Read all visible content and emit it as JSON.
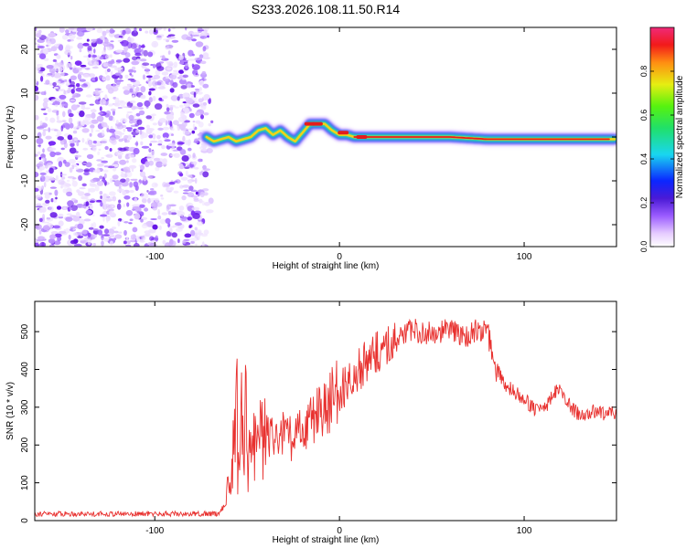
{
  "title": "S233.2026.108.11.50.R14",
  "chart_data": [
    {
      "type": "heatmap",
      "name": "spectrogram",
      "xlabel": "Height of straight line (km)",
      "ylabel": "Frequency (Hz)",
      "xlim": [
        -165,
        150
      ],
      "ylim": [
        -25,
        25
      ],
      "xticks": [
        -100,
        0,
        100
      ],
      "yticks": [
        -20,
        -10,
        0,
        10,
        20
      ],
      "noise_region_x": [
        -165,
        -72
      ],
      "signal_ridge": {
        "x": [
          -72,
          -68,
          -64,
          -60,
          -56,
          -52,
          -48,
          -44,
          -40,
          -36,
          -32,
          -28,
          -24,
          -20,
          -16,
          -12,
          -8,
          -4,
          0,
          4,
          8,
          12,
          20,
          40,
          60,
          80,
          95,
          100,
          120,
          140,
          148
        ],
        "frequency": [
          0,
          -1,
          -0.5,
          0,
          -1,
          -0.5,
          0,
          1.5,
          2,
          0.5,
          1.5,
          0,
          -1,
          1,
          3,
          3,
          3,
          1.5,
          0.5,
          0.5,
          0,
          0,
          0,
          0,
          0,
          -0.5,
          -0.5,
          -0.5,
          -0.5,
          -0.5,
          -0.5
        ]
      },
      "colorbar": {
        "label": "Normalized spectral amplitude",
        "ticks": [
          0.0,
          0.2,
          0.4,
          0.6,
          0.8
        ],
        "tick_labels": [
          "0.0",
          "0.2",
          "0.4",
          "0.6",
          "0.8"
        ],
        "range": [
          0,
          1
        ]
      }
    },
    {
      "type": "line",
      "name": "snr",
      "xlabel": "Height of straight line (km)",
      "ylabel": "SNR (10 * v/v)",
      "xlim": [
        -165,
        150
      ],
      "ylim": [
        0,
        580
      ],
      "xticks": [
        -100,
        0,
        100
      ],
      "yticks": [
        0,
        100,
        200,
        300,
        400,
        500
      ],
      "color": "#e8312f",
      "series": [
        {
          "name": "SNR",
          "x": [
            -165,
            -140,
            -120,
            -100,
            -80,
            -66,
            -62,
            -58,
            -56,
            -55,
            -54,
            -52,
            -50,
            -45,
            -40,
            -35,
            -30,
            -25,
            -20,
            -10,
            0,
            5,
            10,
            15,
            20,
            25,
            30,
            35,
            40,
            50,
            60,
            70,
            75,
            80,
            85,
            90,
            95,
            100,
            105,
            108,
            112,
            115,
            118,
            120,
            125,
            130,
            135,
            140,
            145,
            150
          ],
          "y": [
            18,
            18,
            18,
            18,
            18,
            18,
            40,
            150,
            300,
            80,
            220,
            180,
            150,
            200,
            230,
            210,
            230,
            210,
            250,
            290,
            340,
            370,
            400,
            420,
            440,
            460,
            480,
            490,
            500,
            500,
            500,
            490,
            500,
            500,
            400,
            360,
            340,
            320,
            300,
            290,
            300,
            330,
            350,
            340,
            300,
            280,
            285,
            290,
            280,
            290
          ]
        }
      ]
    }
  ]
}
